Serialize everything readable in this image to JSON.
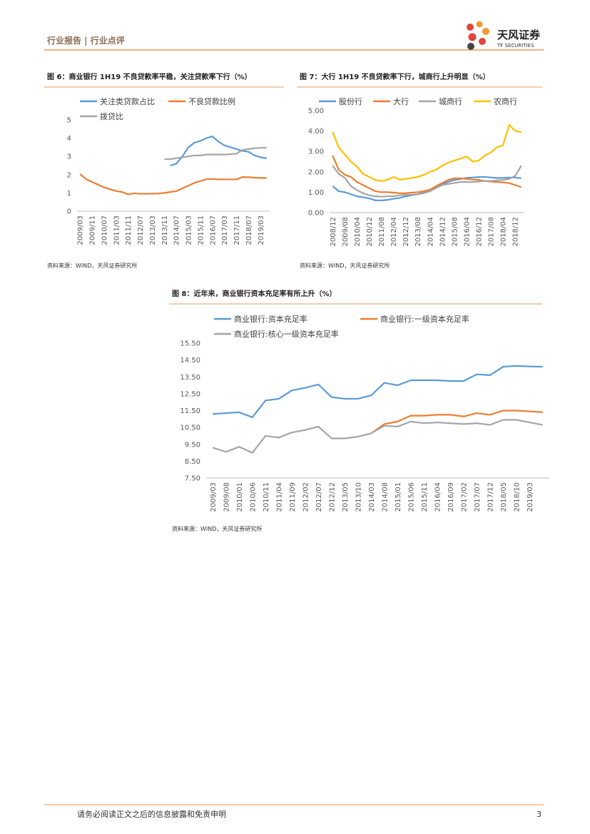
{
  "header": {
    "section": "行业报告 | 行业点评",
    "brand": "天风证券",
    "brand_en": "TF SECURITIES"
  },
  "chart_data": [
    {
      "type": "line",
      "title": "图 6：商业银行 1H19 不良贷款率平稳，关注贷款率下行（%）",
      "categories": [
        "2009/03",
        null,
        "2009/11",
        null,
        "2010/07",
        null,
        "2011/03",
        null,
        "2011/11",
        null,
        "2012/07",
        null,
        "2013/03",
        null,
        "2013/11",
        null,
        "2014/07",
        null,
        "2015/03",
        null,
        "2015/11",
        null,
        "2016/07",
        null,
        "2017/03",
        null,
        "2017/11",
        null,
        "2018/07",
        null,
        "2019/03",
        null
      ],
      "series": [
        {
          "name": "关注类贷款占比",
          "color": "#5b9bd5",
          "values": [
            null,
            null,
            null,
            null,
            null,
            null,
            null,
            null,
            null,
            null,
            null,
            null,
            null,
            null,
            null,
            2.5,
            2.6,
            3.0,
            3.5,
            3.75,
            3.85,
            4.0,
            4.1,
            3.8,
            3.6,
            3.5,
            3.4,
            3.3,
            3.25,
            3.05,
            2.95,
            2.9
          ]
        },
        {
          "name": "不良贷款比例",
          "color": "#ed7d31",
          "values": [
            2.04,
            1.75,
            1.6,
            1.45,
            1.3,
            1.2,
            1.1,
            1.05,
            0.92,
            0.98,
            0.95,
            0.95,
            0.96,
            0.97,
            1.0,
            1.05,
            1.1,
            1.25,
            1.4,
            1.55,
            1.65,
            1.75,
            1.76,
            1.74,
            1.74,
            1.74,
            1.74,
            1.87,
            1.86,
            1.83,
            1.82,
            1.81
          ]
        },
        {
          "name": "拨贷比",
          "color": "#a5a5a5",
          "values": [
            null,
            null,
            null,
            null,
            null,
            null,
            null,
            null,
            null,
            null,
            null,
            null,
            null,
            null,
            2.85,
            2.85,
            2.9,
            2.95,
            3.0,
            3.05,
            3.05,
            3.1,
            3.1,
            3.1,
            3.1,
            3.12,
            3.15,
            3.35,
            3.4,
            3.45,
            3.47,
            3.47
          ]
        }
      ],
      "ylim": [
        0,
        5
      ],
      "yticks": [
        0,
        1,
        2,
        3,
        4,
        5
      ],
      "grid": false,
      "source": "资料来源：WIND，天风证券研究所"
    },
    {
      "type": "line",
      "title": "图 7：大行 1H19 不良贷款率下行，城商行上升明显（%）",
      "categories": [
        "2008/12",
        null,
        "2009/08",
        null,
        "2010/04",
        null,
        "2010/12",
        null,
        "2011/08",
        null,
        "2012/04",
        null,
        "2012/12",
        null,
        "2013/08",
        null,
        "2014/04",
        null,
        "2014/12",
        null,
        "2015/08",
        null,
        "2016/04",
        null,
        "2016/12",
        null,
        "2017/08",
        null,
        "2018/04",
        null,
        "2018/12",
        null
      ],
      "series": [
        {
          "name": "股份行",
          "color": "#5b9bd5",
          "values": [
            1.3,
            1.05,
            1.0,
            0.9,
            0.8,
            0.75,
            0.7,
            0.6,
            0.6,
            0.62,
            0.68,
            0.72,
            0.8,
            0.85,
            0.9,
            1.0,
            1.1,
            1.25,
            1.4,
            1.5,
            1.6,
            1.65,
            1.7,
            1.72,
            1.74,
            1.75,
            1.72,
            1.7,
            1.7,
            1.72,
            1.72,
            1.68
          ]
        },
        {
          "name": "大行",
          "color": "#ed7d31",
          "values": [
            2.8,
            2.1,
            1.85,
            1.75,
            1.5,
            1.35,
            1.2,
            1.05,
            1.0,
            1.0,
            0.98,
            0.95,
            0.95,
            0.98,
            1.0,
            1.05,
            1.12,
            1.3,
            1.45,
            1.6,
            1.68,
            1.68,
            1.65,
            1.62,
            1.6,
            1.55,
            1.52,
            1.5,
            1.48,
            1.45,
            1.35,
            1.25
          ]
        },
        {
          "name": "城商行",
          "color": "#a5a5a5",
          "values": [
            2.3,
            1.9,
            1.7,
            1.3,
            1.1,
            0.95,
            0.85,
            0.8,
            0.78,
            0.8,
            0.8,
            0.85,
            0.87,
            0.88,
            0.9,
            0.95,
            1.05,
            1.2,
            1.35,
            1.4,
            1.45,
            1.5,
            1.5,
            1.5,
            1.52,
            1.55,
            1.55,
            1.58,
            1.6,
            1.65,
            1.8,
            2.3
          ]
        },
        {
          "name": "农商行",
          "color": "#ffc000",
          "values": [
            3.95,
            3.2,
            2.85,
            2.5,
            2.25,
            1.9,
            1.75,
            1.6,
            1.55,
            1.6,
            1.75,
            1.62,
            1.65,
            1.7,
            1.75,
            1.85,
            2.0,
            2.1,
            2.3,
            2.45,
            2.55,
            2.65,
            2.75,
            2.5,
            2.55,
            2.8,
            2.95,
            3.2,
            3.3,
            4.3,
            4.0,
            3.95
          ]
        }
      ],
      "ylim": [
        0,
        5
      ],
      "yticks": [
        {
          "value": 0,
          "label": "0.00"
        },
        {
          "value": 1,
          "label": "1.00"
        },
        {
          "value": 2,
          "label": "2.00"
        },
        {
          "value": 3,
          "label": "3.00"
        },
        {
          "value": 4,
          "label": "4.00"
        },
        {
          "value": 5,
          "label": "5.00"
        }
      ],
      "grid": false,
      "source": "资料来源：WIND，天风证券研究所"
    },
    {
      "type": "line",
      "title": "图 8：近年来，商业银行资本充足率有所上升（%）",
      "categories": [
        "2009/03",
        "2009/08",
        "2010/01",
        "2010/06",
        "2010/11",
        "2011/04",
        "2011/09",
        "2012/02",
        "2012/07",
        "2012/12",
        "2013/05",
        "2013/10",
        "2014/03",
        "2014/08",
        "2015/01",
        "2015/06",
        "2015/11",
        "2016/04",
        "2016/09",
        "2017/02",
        "2017/07",
        "2017/12",
        "2018/05",
        "2018/10",
        "2019/03",
        null
      ],
      "series": [
        {
          "name": "商业银行:资本充足率",
          "color": "#5b9bd5",
          "values": [
            11.3,
            11.35,
            11.4,
            11.1,
            12.1,
            12.2,
            12.7,
            12.85,
            13.05,
            12.3,
            12.2,
            12.2,
            12.4,
            13.15,
            13.0,
            13.3,
            13.3,
            13.3,
            13.25,
            13.25,
            13.65,
            13.6,
            14.1,
            14.15,
            14.12,
            14.1
          ]
        },
        {
          "name": "商业银行:一级资本充足率",
          "color": "#ed7d31",
          "values": [
            null,
            null,
            null,
            null,
            null,
            null,
            null,
            null,
            null,
            null,
            null,
            null,
            10.15,
            10.7,
            10.85,
            11.2,
            11.2,
            11.25,
            11.25,
            11.15,
            11.35,
            11.25,
            11.5,
            11.5,
            11.45,
            11.4
          ]
        },
        {
          "name": "商业银行:核心一级资本充足率",
          "color": "#a5a5a5",
          "values": [
            9.3,
            9.05,
            9.35,
            9.0,
            10.0,
            9.9,
            10.2,
            10.35,
            10.55,
            9.85,
            9.85,
            9.95,
            10.15,
            10.6,
            10.55,
            10.85,
            10.75,
            10.8,
            10.75,
            10.7,
            10.75,
            10.65,
            10.95,
            10.95,
            10.8,
            10.65
          ]
        }
      ],
      "ylim": [
        7.5,
        15.5
      ],
      "yticks": [
        {
          "value": 7.5,
          "label": "7.50"
        },
        {
          "value": 8.5,
          "label": "8.50"
        },
        {
          "value": 9.5,
          "label": "9.50"
        },
        {
          "value": 10.5,
          "label": "10.50"
        },
        {
          "value": 11.5,
          "label": "11.50"
        },
        {
          "value": 12.5,
          "label": "12.50"
        },
        {
          "value": 13.5,
          "label": "13.50"
        },
        {
          "value": 14.5,
          "label": "14.50"
        },
        {
          "value": 15.5,
          "label": "15.50"
        }
      ],
      "grid": false,
      "source": "资料来源：WIND，天风证券研究所"
    }
  ],
  "footer": {
    "disclaimer": "请务必阅读正文之后的信息披露和免责申明",
    "page": "3"
  }
}
